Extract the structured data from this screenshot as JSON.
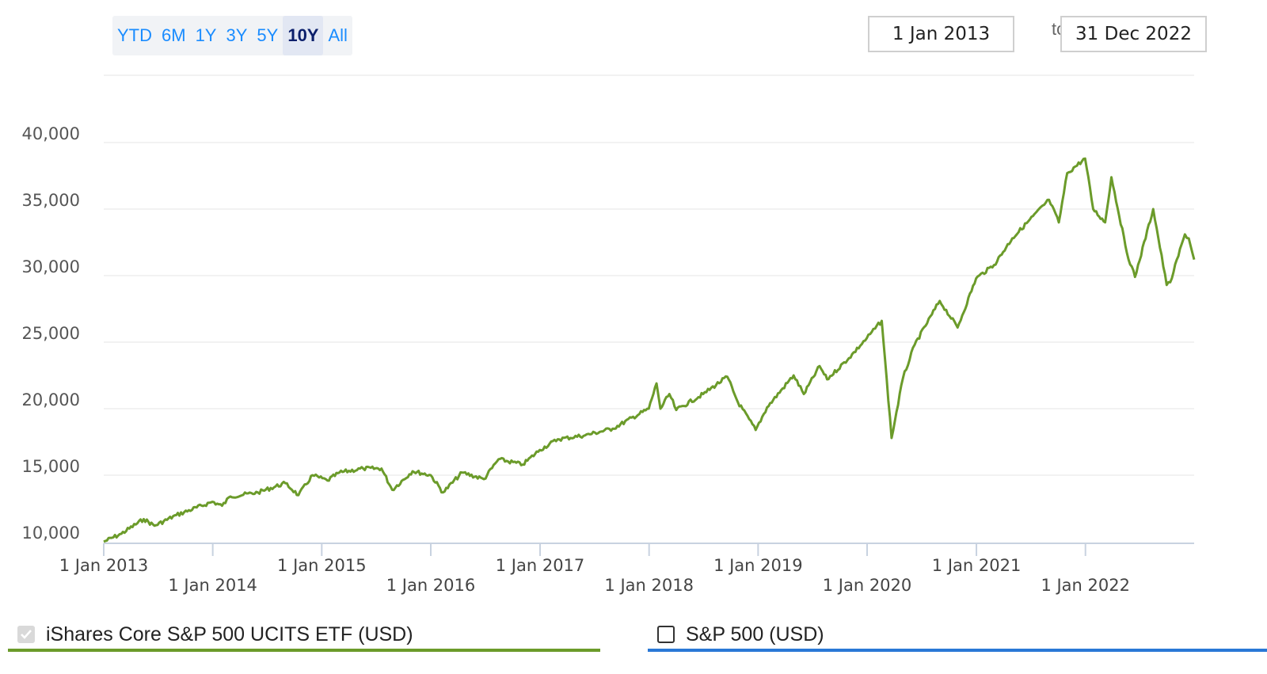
{
  "range_selector": {
    "buttons": [
      "YTD",
      "6M",
      "1Y",
      "3Y",
      "5Y",
      "10Y",
      "All"
    ],
    "active": "10Y"
  },
  "date_range": {
    "from": "1 Jan 2013",
    "to_label": "to",
    "to": "31 Dec 2022"
  },
  "legend": {
    "series1": {
      "label": "iShares Core S&P 500 UCITS ETF (USD)",
      "checked": true,
      "color": "#6b9b2a"
    },
    "series2": {
      "label": "S&P 500 (USD)",
      "checked": false,
      "color": "#2a78d6"
    }
  },
  "chart_data": {
    "type": "line",
    "xlabel": "",
    "ylabel": "",
    "ylim": [
      10000,
      40000
    ],
    "y_ticks": [
      {
        "value": 10000,
        "label": "10,000"
      },
      {
        "value": 15000,
        "label": "15,000"
      },
      {
        "value": 20000,
        "label": "20,000"
      },
      {
        "value": 25000,
        "label": "25,000"
      },
      {
        "value": 30000,
        "label": "30,000"
      },
      {
        "value": 35000,
        "label": "35,000"
      },
      {
        "value": 40000,
        "label": "40,000"
      }
    ],
    "xlim": [
      "2013-01-01",
      "2022-12-31"
    ],
    "x_ticks": [
      {
        "date": "2013-01-01",
        "label": "1 Jan 2013",
        "row": 0
      },
      {
        "date": "2014-01-01",
        "label": "1 Jan 2014",
        "row": 1
      },
      {
        "date": "2015-01-01",
        "label": "1 Jan 2015",
        "row": 0
      },
      {
        "date": "2016-01-01",
        "label": "1 Jan 2016",
        "row": 1
      },
      {
        "date": "2017-01-01",
        "label": "1 Jan 2017",
        "row": 0
      },
      {
        "date": "2018-01-01",
        "label": "1 Jan 2018",
        "row": 1
      },
      {
        "date": "2019-01-01",
        "label": "1 Jan 2019",
        "row": 0
      },
      {
        "date": "2020-01-01",
        "label": "1 Jan 2020",
        "row": 1
      },
      {
        "date": "2021-01-01",
        "label": "1 Jan 2021",
        "row": 0
      },
      {
        "date": "2022-01-01",
        "label": "1 Jan 2022",
        "row": 1
      }
    ],
    "grid": true,
    "series": [
      {
        "name": "iShares Core S&P 500 UCITS ETF (USD)",
        "color": "#6b9b2a",
        "points": [
          [
            "2013-01-01",
            10000
          ],
          [
            "2013-03-01",
            10600
          ],
          [
            "2013-05-15",
            11700
          ],
          [
            "2013-06-20",
            11200
          ],
          [
            "2013-09-01",
            12000
          ],
          [
            "2013-12-31",
            13000
          ],
          [
            "2014-02-01",
            12700
          ],
          [
            "2014-03-01",
            13400
          ],
          [
            "2014-06-01",
            13700
          ],
          [
            "2014-09-01",
            14400
          ],
          [
            "2014-10-15",
            13500
          ],
          [
            "2014-12-01",
            15000
          ],
          [
            "2015-01-20",
            14600
          ],
          [
            "2015-03-01",
            15200
          ],
          [
            "2015-05-20",
            15500
          ],
          [
            "2015-07-20",
            15500
          ],
          [
            "2015-08-25",
            13900
          ],
          [
            "2015-11-01",
            15300
          ],
          [
            "2016-01-01",
            15000
          ],
          [
            "2016-02-11",
            13700
          ],
          [
            "2016-04-15",
            15200
          ],
          [
            "2016-06-27",
            14700
          ],
          [
            "2016-08-15",
            16200
          ],
          [
            "2016-11-04",
            15800
          ],
          [
            "2016-12-31",
            16900
          ],
          [
            "2017-03-01",
            17700
          ],
          [
            "2017-06-01",
            18000
          ],
          [
            "2017-09-01",
            18500
          ],
          [
            "2017-12-31",
            20000
          ],
          [
            "2018-01-26",
            21900
          ],
          [
            "2018-02-08",
            20000
          ],
          [
            "2018-03-10",
            21100
          ],
          [
            "2018-04-02",
            19900
          ],
          [
            "2018-07-01",
            21100
          ],
          [
            "2018-09-20",
            22400
          ],
          [
            "2018-10-25",
            20500
          ],
          [
            "2018-12-24",
            18400
          ],
          [
            "2019-01-31",
            20100
          ],
          [
            "2019-04-30",
            22500
          ],
          [
            "2019-06-03",
            21100
          ],
          [
            "2019-07-26",
            23200
          ],
          [
            "2019-08-20",
            22200
          ],
          [
            "2019-11-01",
            23800
          ],
          [
            "2019-12-31",
            25300
          ],
          [
            "2020-02-19",
            26600
          ],
          [
            "2020-03-23",
            17800
          ],
          [
            "2020-04-30",
            22300
          ],
          [
            "2020-06-08",
            24800
          ],
          [
            "2020-08-31",
            28100
          ],
          [
            "2020-10-30",
            26100
          ],
          [
            "2020-12-31",
            29800
          ],
          [
            "2021-03-01",
            30800
          ],
          [
            "2021-05-01",
            32800
          ],
          [
            "2021-09-01",
            35700
          ],
          [
            "2021-10-04",
            34000
          ],
          [
            "2021-11-01",
            37700
          ],
          [
            "2021-12-31",
            38800
          ],
          [
            "2022-01-27",
            35000
          ],
          [
            "2022-03-08",
            34000
          ],
          [
            "2022-03-29",
            37400
          ],
          [
            "2022-05-20",
            31700
          ],
          [
            "2022-06-16",
            29900
          ],
          [
            "2022-08-16",
            35000
          ],
          [
            "2022-09-30",
            29300
          ],
          [
            "2022-10-12",
            29500
          ],
          [
            "2022-11-30",
            33100
          ],
          [
            "2022-12-13",
            32800
          ],
          [
            "2022-12-31",
            31200
          ]
        ]
      }
    ]
  }
}
